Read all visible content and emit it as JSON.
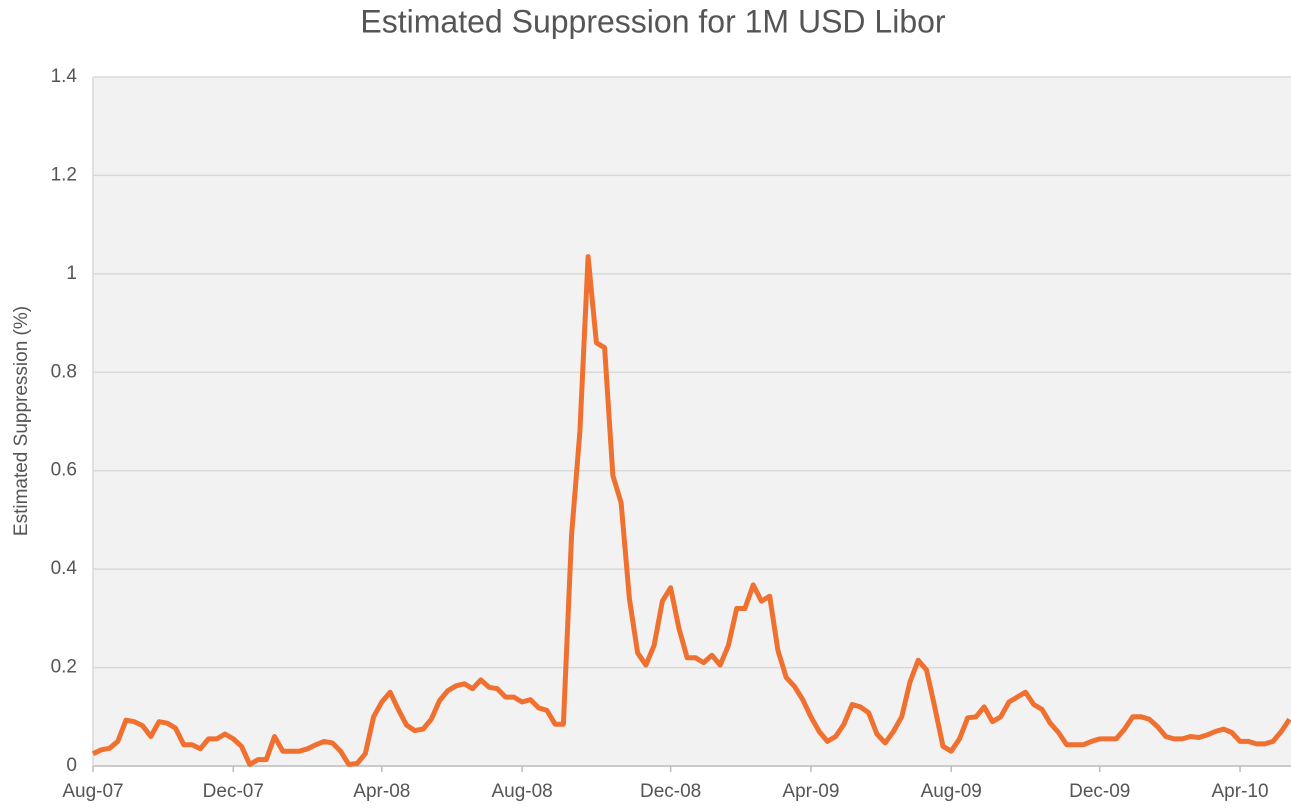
{
  "chart_data": {
    "type": "line",
    "title": "Estimated Suppression for 1M USD Libor",
    "y_label": "Estimated Suppression (%)",
    "categories": [
      "Aug-07",
      null,
      null,
      null,
      null,
      null,
      null,
      null,
      null,
      null,
      null,
      null,
      null,
      null,
      null,
      null,
      null,
      "Dec-07",
      null,
      null,
      null,
      null,
      null,
      null,
      null,
      null,
      null,
      null,
      null,
      null,
      null,
      null,
      null,
      null,
      null,
      "Apr-08",
      null,
      null,
      null,
      null,
      null,
      null,
      null,
      null,
      null,
      null,
      null,
      null,
      null,
      null,
      null,
      null,
      "Aug-08",
      null,
      null,
      null,
      null,
      null,
      null,
      null,
      null,
      null,
      null,
      null,
      null,
      null,
      null,
      null,
      null,
      null,
      "Dec-08",
      null,
      null,
      null,
      null,
      null,
      null,
      null,
      null,
      null,
      null,
      null,
      null,
      null,
      null,
      null,
      null,
      "Apr-09",
      null,
      null,
      null,
      null,
      null,
      null,
      null,
      null,
      null,
      null,
      null,
      null,
      null,
      null,
      null,
      null,
      "Aug-09",
      null,
      null,
      null,
      null,
      null,
      null,
      null,
      null,
      null,
      null,
      null,
      null,
      null,
      null,
      null,
      null,
      null,
      "Dec-09",
      null,
      null,
      null,
      null,
      null,
      null,
      null,
      null,
      null,
      null,
      null,
      null,
      null,
      null,
      null,
      null,
      "Apr-10",
      null,
      null,
      null,
      null,
      null,
      null
    ],
    "series": [
      {
        "name": "Estimated Suppression",
        "color": "#f07030",
        "values": [
          0.025,
          0.033,
          0.036,
          0.05,
          0.093,
          0.09,
          0.082,
          0.06,
          0.09,
          0.087,
          0.077,
          0.043,
          0.043,
          0.035,
          0.055,
          0.055,
          0.065,
          0.055,
          0.04,
          0.003,
          0.013,
          0.013,
          0.06,
          0.03,
          0.03,
          0.03,
          0.035,
          0.043,
          0.05,
          0.047,
          0.03,
          0.003,
          0.005,
          0.025,
          0.1,
          0.13,
          0.15,
          0.115,
          0.083,
          0.072,
          0.075,
          0.095,
          0.133,
          0.153,
          0.163,
          0.167,
          0.157,
          0.175,
          0.16,
          0.157,
          0.14,
          0.14,
          0.13,
          0.135,
          0.118,
          0.113,
          0.085,
          0.085,
          0.47,
          0.68,
          1.035,
          0.86,
          0.85,
          0.59,
          0.535,
          0.34,
          0.23,
          0.205,
          0.245,
          0.335,
          0.362,
          0.28,
          0.22,
          0.22,
          0.21,
          0.225,
          0.205,
          0.245,
          0.32,
          0.32,
          0.368,
          0.335,
          0.345,
          0.235,
          0.18,
          0.162,
          0.135,
          0.1,
          0.07,
          0.05,
          0.06,
          0.085,
          0.125,
          0.12,
          0.108,
          0.065,
          0.047,
          0.07,
          0.1,
          0.17,
          0.215,
          0.195,
          0.12,
          0.04,
          0.03,
          0.055,
          0.098,
          0.1,
          0.12,
          0.09,
          0.1,
          0.13,
          0.14,
          0.15,
          0.125,
          0.115,
          0.087,
          0.068,
          0.043,
          0.043,
          0.043,
          0.05,
          0.055,
          0.055,
          0.055,
          0.075,
          0.1,
          0.1,
          0.095,
          0.08,
          0.06,
          0.055,
          0.055,
          0.06,
          0.058,
          0.063,
          0.07,
          0.075,
          0.068,
          0.05,
          0.05,
          0.045,
          0.045,
          0.05,
          0.07,
          0.095
        ]
      }
    ],
    "ylim": [
      0,
      1.4
    ],
    "yticks": [
      0,
      0.2,
      0.4,
      0.6,
      0.8,
      1,
      1.2,
      1.4
    ],
    "grid": true
  }
}
